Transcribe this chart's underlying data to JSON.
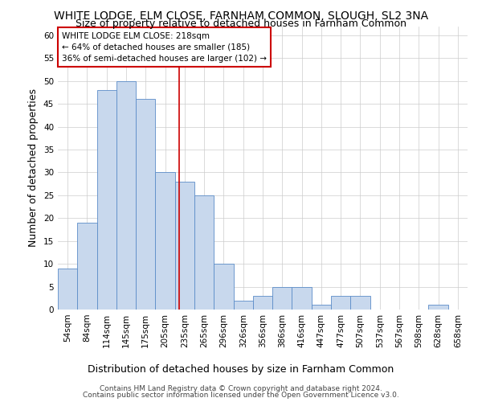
{
  "title": "WHITE LODGE, ELM CLOSE, FARNHAM COMMON, SLOUGH, SL2 3NA",
  "subtitle": "Size of property relative to detached houses in Farnham Common",
  "xlabel": "Distribution of detached houses by size in Farnham Common",
  "ylabel": "Number of detached properties",
  "footer1": "Contains HM Land Registry data © Crown copyright and database right 2024.",
  "footer2": "Contains public sector information licensed under the Open Government Licence v3.0.",
  "categories": [
    "54sqm",
    "84sqm",
    "114sqm",
    "145sqm",
    "175sqm",
    "205sqm",
    "235sqm",
    "265sqm",
    "296sqm",
    "326sqm",
    "356sqm",
    "386sqm",
    "416sqm",
    "447sqm",
    "477sqm",
    "507sqm",
    "537sqm",
    "567sqm",
    "598sqm",
    "628sqm",
    "658sqm"
  ],
  "values": [
    9,
    19,
    48,
    50,
    46,
    30,
    28,
    25,
    10,
    2,
    3,
    5,
    5,
    1,
    3,
    3,
    0,
    0,
    0,
    1,
    0
  ],
  "bar_color": "#c8d8ed",
  "bar_edge_color": "#5b8cc8",
  "annotation_text": "WHITE LODGE ELM CLOSE: 218sqm\n← 64% of detached houses are smaller (185)\n36% of semi-detached houses are larger (102) →",
  "annotation_box_color": "#ffffff",
  "annotation_box_edge": "#cc0000",
  "vline_x": 5.73,
  "vline_color": "#cc0000",
  "ylim": [
    0,
    62
  ],
  "yticks": [
    0,
    5,
    10,
    15,
    20,
    25,
    30,
    35,
    40,
    45,
    50,
    55,
    60
  ],
  "background_color": "#ffffff",
  "grid_color": "#cccccc",
  "title_fontsize": 10,
  "subtitle_fontsize": 9,
  "axis_label_fontsize": 9,
  "tick_fontsize": 7.5,
  "footer_fontsize": 6.5,
  "annot_fontsize": 7.5
}
